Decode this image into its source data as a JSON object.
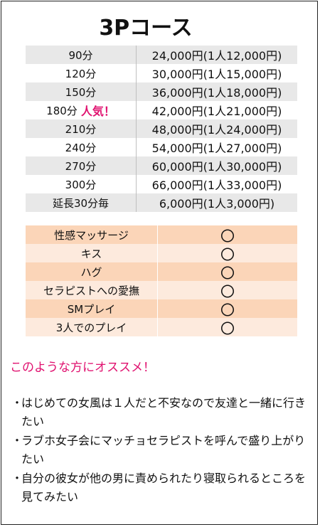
{
  "title": "3Pコース",
  "prices": [
    {
      "duration": "90分",
      "badge": "",
      "price": "24,000円(1人12,000円)"
    },
    {
      "duration": "120分",
      "badge": "",
      "price": "30,000円(1人15,000円)"
    },
    {
      "duration": "150分",
      "badge": "",
      "price": "36,000円(1人18,000円)"
    },
    {
      "duration": "180分",
      "badge": "人気！",
      "price": "42,000円(1人21,000円)"
    },
    {
      "duration": "210分",
      "badge": "",
      "price": "48,000円(1人24,000円)"
    },
    {
      "duration": "240分",
      "badge": "",
      "price": "54,000円(1人27,000円)"
    },
    {
      "duration": "270分",
      "badge": "",
      "price": "60,000円(1人30,000円)"
    },
    {
      "duration": "300分",
      "badge": "",
      "price": "66,000円(1人33,000円)"
    },
    {
      "duration": "延長30分毎",
      "badge": "",
      "price": "6,000円(1人3,000円)"
    }
  ],
  "options": [
    {
      "name": "性感マッサージ",
      "mark": "〇"
    },
    {
      "name": "キス",
      "mark": "〇"
    },
    {
      "name": "ハグ",
      "mark": "〇"
    },
    {
      "name": "セラピストへの愛撫",
      "mark": "〇"
    },
    {
      "name": "SMプレイ",
      "mark": "〇"
    },
    {
      "name": "3人でのプレイ",
      "mark": "〇"
    }
  ],
  "recommend_title": "このような方にオススメ！",
  "reasons": [
    {
      "bullet": "・",
      "text": "はじめての女風は１人だと不安なので友達と一緒に行きたい"
    },
    {
      "bullet": "・",
      "text": "ラブホ女子会にマッチョセラピストを呼んで盛り上がりたい"
    },
    {
      "bullet": "・",
      "text": "自分の彼女が他の男に責められたり寝取られるところを見てみたい"
    }
  ],
  "colors": {
    "accent": "#e0116f",
    "price_row_shade": "#e8e8e8",
    "option_row_dark": "#fbd5b8",
    "option_row_light": "#fdeadd"
  }
}
